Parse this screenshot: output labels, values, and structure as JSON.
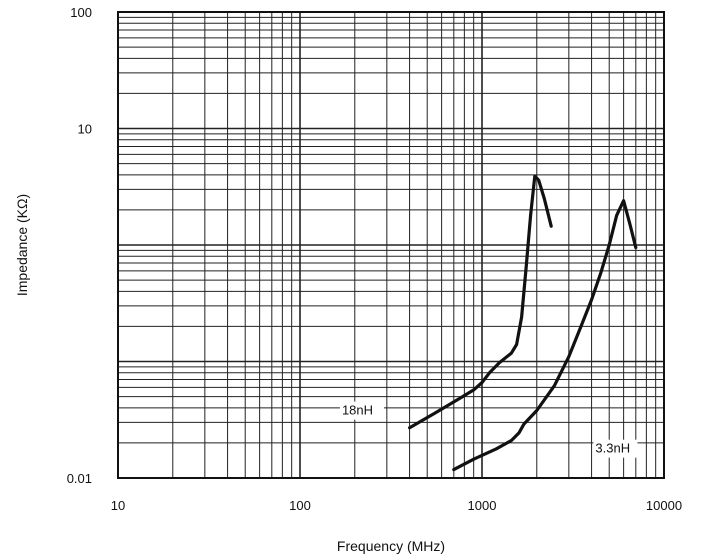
{
  "chart_data": {
    "type": "line",
    "title": "",
    "xlabel": "Frequency (MHz)",
    "ylabel": "Impedance (KΩ)",
    "xscale": "log",
    "yscale": "log",
    "xlim": [
      10,
      10000
    ],
    "ylim": [
      0.01,
      100
    ],
    "grid": true,
    "x_tick_labels": [
      "10",
      "100",
      "1000",
      "10000"
    ],
    "x_tick_values": [
      10,
      100,
      1000,
      10000
    ],
    "y_tick_labels": [
      "0.01",
      "10",
      "100"
    ],
    "y_tick_values": [
      0.01,
      10,
      100
    ],
    "series": [
      {
        "name": "18nH",
        "x": [
          400,
          550,
          750,
          900,
          1000,
          1100,
          1250,
          1450,
          1550,
          1650,
          1750,
          1850,
          1950,
          2050,
          2200,
          2400
        ],
        "y": [
          0.027,
          0.036,
          0.048,
          0.057,
          0.066,
          0.08,
          0.098,
          0.118,
          0.14,
          0.24,
          0.65,
          1.8,
          3.9,
          3.6,
          2.5,
          1.45
        ]
      },
      {
        "name": "3.3nH",
        "x": [
          700,
          900,
          1200,
          1450,
          1600,
          1700,
          2000,
          2500,
          3000,
          3500,
          4000,
          4500,
          5000,
          5500,
          6000,
          6500,
          7000
        ],
        "y": [
          0.0118,
          0.0145,
          0.0178,
          0.021,
          0.0245,
          0.029,
          0.038,
          0.062,
          0.11,
          0.2,
          0.34,
          0.58,
          1.0,
          1.8,
          2.4,
          1.5,
          0.95
        ]
      }
    ]
  }
}
